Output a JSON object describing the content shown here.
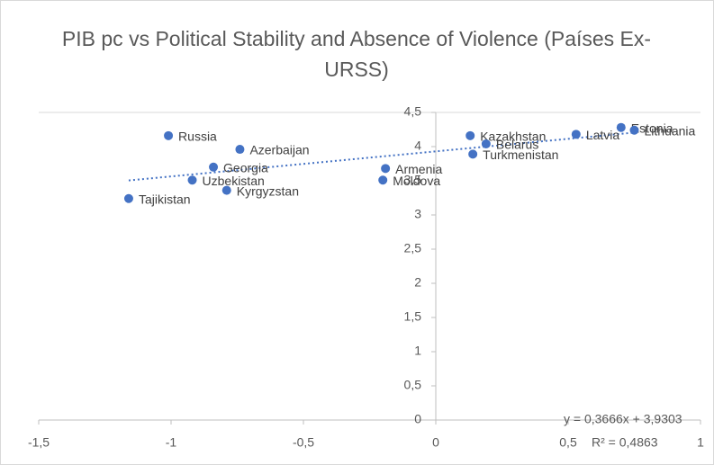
{
  "chart_data": {
    "type": "scatter",
    "title": "PIB pc vs Political Stability and Absence of Violence (Países Ex-URSS)",
    "labels": [
      "Russia",
      "Azerbaijan",
      "Georgia",
      "Uzbekistan",
      "Kyrgyzstan",
      "Tajikistan",
      "Armenia",
      "Moldova",
      "Kazakhstan",
      "Belarus",
      "Turkmenistan",
      "Latvia",
      "Estonia",
      "Lithuania"
    ],
    "x": [
      -1.01,
      -0.74,
      -0.84,
      -0.92,
      -0.79,
      -1.16,
      -0.19,
      -0.2,
      0.13,
      0.19,
      0.14,
      0.53,
      0.7,
      0.75
    ],
    "values": [
      4.16,
      3.96,
      3.7,
      3.51,
      3.36,
      3.24,
      3.68,
      3.51,
      4.16,
      4.04,
      3.89,
      4.18,
      4.28,
      4.24
    ],
    "color": "#4472c4",
    "xlim": [
      -1.5,
      1
    ],
    "xticks": [
      {
        "value": -1.5,
        "label": "-1,5"
      },
      -1,
      {
        "value": -0.5,
        "label": "-0,5"
      },
      0,
      {
        "value": 0.5,
        "label": "0,5"
      },
      1
    ],
    "ylim": [
      0,
      4.5
    ],
    "yticks": [
      0,
      {
        "value": 0.5,
        "label": "0,5"
      },
      1,
      {
        "value": 1.5,
        "label": "1,5"
      },
      2,
      {
        "value": 2.5,
        "label": "2,5"
      },
      3,
      {
        "value": 3.5,
        "label": "3,5"
      },
      4,
      {
        "value": 4.5,
        "label": "4,5"
      }
    ],
    "trendline": {
      "slope": 0.3666,
      "intercept": 3.9303,
      "equation": "y = 0,3666x + 3,9303",
      "r2": "R² = 0,4863"
    }
  }
}
